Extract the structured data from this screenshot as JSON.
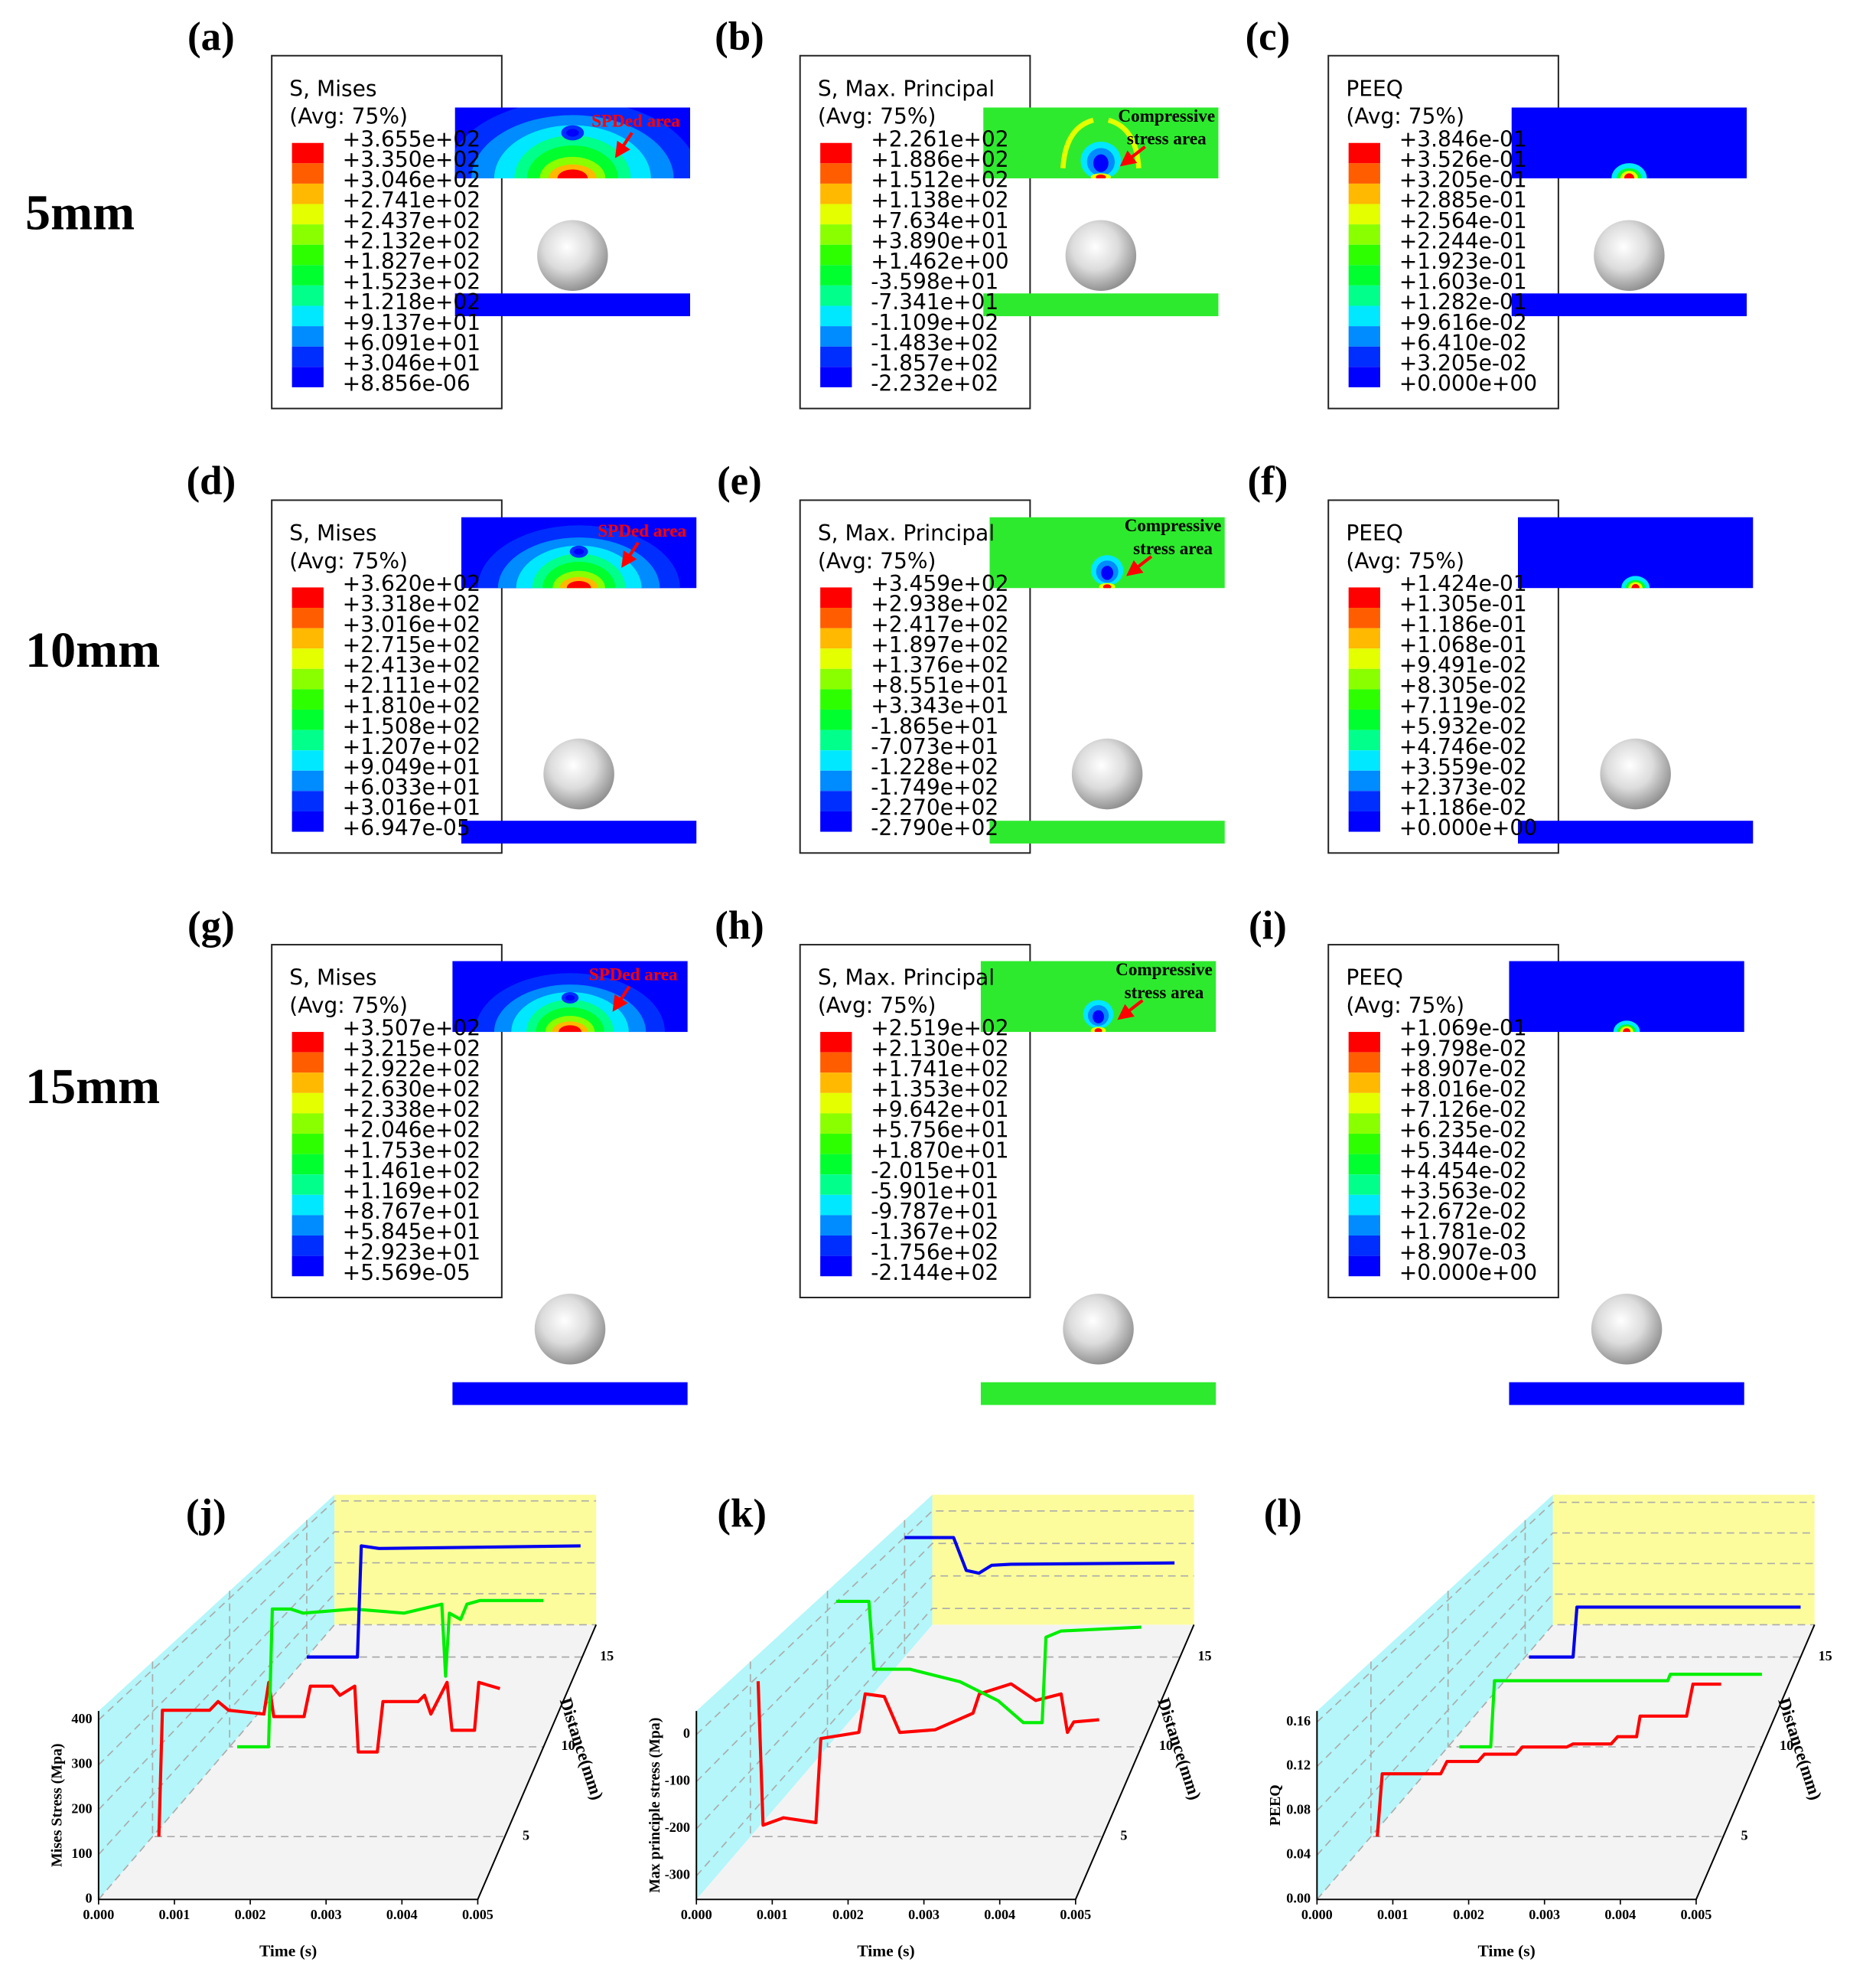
{
  "rows": [
    "5mm",
    "10mm",
    "15mm"
  ],
  "colormap": [
    "#ff0000",
    "#ff5d00",
    "#ffb900",
    "#e3ff00",
    "#8aff00",
    "#2eff00",
    "#00ff2e",
    "#00ff8b",
    "#00e8ff",
    "#008bff",
    "#002eff",
    "#0000ff"
  ],
  "panels": [
    {
      "label": "(a)",
      "title": [
        "S, Mises",
        "(Avg: 75%)"
      ],
      "color": "#0000ff",
      "annotation": [
        "SPDed area"
      ],
      "levels": [
        "+3.655e+02",
        "+3.350e+02",
        "+3.046e+02",
        "+2.741e+02",
        "+2.437e+02",
        "+2.132e+02",
        "+1.827e+02",
        "+1.523e+02",
        "+1.218e+02",
        "+9.137e+01",
        "+6.091e+01",
        "+3.046e+01",
        "+8.856e-06"
      ]
    },
    {
      "label": "(b)",
      "title": [
        "S, Max. Principal",
        "(Avg: 75%)"
      ],
      "color": "#2eea2e",
      "annotation": [
        "Compressive",
        "stress area"
      ],
      "levels": [
        "+2.261e+02",
        "+1.886e+02",
        "+1.512e+02",
        "+1.138e+02",
        "+7.634e+01",
        "+3.890e+01",
        "+1.462e+00",
        "-3.598e+01",
        "-7.341e+01",
        "-1.109e+02",
        "-1.483e+02",
        "-1.857e+02",
        "-2.232e+02"
      ]
    },
    {
      "label": "(c)",
      "title": [
        "PEEQ",
        "(Avg: 75%)"
      ],
      "color": "#0000ff",
      "levels": [
        "+3.846e-01",
        "+3.526e-01",
        "+3.205e-01",
        "+2.885e-01",
        "+2.564e-01",
        "+2.244e-01",
        "+1.923e-01",
        "+1.603e-01",
        "+1.282e-01",
        "+9.616e-02",
        "+6.410e-02",
        "+3.205e-02",
        "+0.000e+00"
      ]
    },
    {
      "label": "(d)",
      "title": [
        "S, Mises",
        "(Avg: 75%)"
      ],
      "color": "#0000ff",
      "annotation": [
        "SPDed area"
      ],
      "levels": [
        "+3.620e+02",
        "+3.318e+02",
        "+3.016e+02",
        "+2.715e+02",
        "+2.413e+02",
        "+2.111e+02",
        "+1.810e+02",
        "+1.508e+02",
        "+1.207e+02",
        "+9.049e+01",
        "+6.033e+01",
        "+3.016e+01",
        "+6.947e-05"
      ]
    },
    {
      "label": "(e)",
      "title": [
        "S, Max. Principal",
        "(Avg: 75%)"
      ],
      "color": "#2eea2e",
      "annotation": [
        "Compressive",
        "stress area"
      ],
      "levels": [
        "+3.459e+02",
        "+2.938e+02",
        "+2.417e+02",
        "+1.897e+02",
        "+1.376e+02",
        "+8.551e+01",
        "+3.343e+01",
        "-1.865e+01",
        "-7.073e+01",
        "-1.228e+02",
        "-1.749e+02",
        "-2.270e+02",
        "-2.790e+02"
      ]
    },
    {
      "label": "(f)",
      "title": [
        "PEEQ",
        "(Avg: 75%)"
      ],
      "color": "#0000ff",
      "levels": [
        "+1.424e-01",
        "+1.305e-01",
        "+1.186e-01",
        "+1.068e-01",
        "+9.491e-02",
        "+8.305e-02",
        "+7.119e-02",
        "+5.932e-02",
        "+4.746e-02",
        "+3.559e-02",
        "+2.373e-02",
        "+1.186e-02",
        "+0.000e+00"
      ]
    },
    {
      "label": "(g)",
      "title": [
        "S, Mises",
        "(Avg: 75%)"
      ],
      "color": "#0000ff",
      "annotation": [
        "SPDed area"
      ],
      "levels": [
        "+3.507e+02",
        "+3.215e+02",
        "+2.922e+02",
        "+2.630e+02",
        "+2.338e+02",
        "+2.046e+02",
        "+1.753e+02",
        "+1.461e+02",
        "+1.169e+02",
        "+8.767e+01",
        "+5.845e+01",
        "+2.923e+01",
        "+5.569e-05"
      ]
    },
    {
      "label": "(h)",
      "title": [
        "S, Max. Principal",
        "(Avg: 75%)"
      ],
      "color": "#2eea2e",
      "annotation": [
        "Compressive",
        "stress area"
      ],
      "levels": [
        "+2.519e+02",
        "+2.130e+02",
        "+1.741e+02",
        "+1.353e+02",
        "+9.642e+01",
        "+5.756e+01",
        "+1.870e+01",
        "-2.015e+01",
        "-5.901e+01",
        "-9.787e+01",
        "-1.367e+02",
        "-1.756e+02",
        "-2.144e+02"
      ]
    },
    {
      "label": "(i)",
      "title": [
        "PEEQ",
        "(Avg: 75%)"
      ],
      "color": "#0000ff",
      "levels": [
        "+1.069e-01",
        "+9.798e-02",
        "+8.907e-02",
        "+8.016e-02",
        "+7.126e-02",
        "+6.235e-02",
        "+5.344e-02",
        "+4.454e-02",
        "+3.563e-02",
        "+2.672e-02",
        "+1.781e-02",
        "+8.907e-03",
        "+0.000e+00"
      ]
    }
  ],
  "charts": [
    {
      "label": "(j)",
      "type": "line",
      "x_label": "Time (s)",
      "y_label": "Mises Stress (Mpa)",
      "z_label": "Distance(mm)",
      "xlim": [
        0,
        0.005
      ],
      "xticks": [
        {
          "value": 0,
          "label": "0.000"
        },
        0.001,
        0.002,
        0.003,
        0.004,
        0.005
      ],
      "ylim": [
        0,
        420
      ],
      "yticks": [
        0,
        100,
        200,
        300,
        400
      ],
      "zlim": [
        1.5,
        16.8
      ],
      "zticks": [
        5,
        10,
        15
      ],
      "series": [
        {
          "color": "#ff0000",
          "z": 5,
          "x": [
            9e-05,
            0.00014,
            0.00081,
            0.00093,
            0.00108,
            0.00158,
            0.00165,
            0.00172,
            0.00215,
            0.00224,
            0.00255,
            0.00266,
            0.00287,
            0.00292,
            0.00319,
            0.00327,
            0.00377,
            0.00386,
            0.00395,
            0.00418,
            0.00425,
            0.00457,
            0.00463,
            0.00493
          ],
          "values": [
            0,
            303,
            303,
            324,
            303,
            294,
            370,
            288,
            288,
            361,
            361,
            339,
            361,
            203,
            203,
            324,
            324,
            339,
            294,
            370,
            255,
            255,
            370,
            355
          ]
        },
        {
          "color": "#00ee00",
          "z": 10,
          "x": [
            0.00012,
            0.00062,
            0.00068,
            0.00097,
            0.00117,
            0.00197,
            0.00278,
            0.00338,
            0.00344,
            0.0035,
            0.00368,
            0.00378,
            0.00399,
            0.005
          ],
          "values": [
            0,
            0,
            371,
            371,
            360,
            371,
            360,
            384,
            190,
            360,
            343,
            384,
            394,
            394
          ]
        },
        {
          "color": "#0000ee",
          "z": 15,
          "x": [
            0,
            0.00092,
            0.00099,
            0.00131,
            0.00497
          ],
          "values": [
            0,
            0,
            341,
            333,
            341
          ]
        }
      ]
    },
    {
      "label": "(k)",
      "type": "line",
      "x_label": "Time (s)",
      "y_label": "Max principle stress (Mpa)",
      "z_label": "Distance(mm)",
      "xlim": [
        0,
        0.005
      ],
      "xticks": [
        {
          "value": 0,
          "label": "0.000"
        },
        0.001,
        0.002,
        0.003,
        0.004,
        0.005
      ],
      "ylim": [
        -350,
        50
      ],
      "yticks": [
        -300,
        -200,
        -100,
        0
      ],
      "zlim": [
        1.5,
        16.8
      ],
      "zticks": [
        5,
        10,
        15
      ],
      "series": [
        {
          "color": "#ff0000",
          "z": 5,
          "x": [
            0.00011,
            0.00018,
            0.00047,
            0.00093,
            0.001,
            0.00154,
            0.00163,
            0.0019,
            0.00212,
            0.00262,
            0.00316,
            0.00325,
            0.0037,
            0.00405,
            0.00441,
            0.0045,
            0.00459,
            0.00495
          ],
          "values": [
            5,
            -324,
            -307,
            -318,
            -126,
            -112,
            -24,
            -30,
            -112,
            -106,
            -68,
            -24,
            -1,
            -39,
            -24,
            -112,
            -88,
            -83
          ]
        },
        {
          "color": "#00ee00",
          "z": 10,
          "x": [
            0.00014,
            0.00066,
            0.00074,
            0.00131,
            0.00211,
            0.00272,
            0.00312,
            0.00342,
            0.00348,
            0.00372,
            0.005
          ],
          "values": [
            23,
            23,
            -151,
            -151,
            -183,
            -232,
            -288,
            -288,
            -69,
            -53,
            -43
          ]
        },
        {
          "color": "#0000ee",
          "z": 15,
          "x": [
            0,
            0.00089,
            0.00112,
            0.00135,
            0.00158,
            0.00193,
            0.0049
          ],
          "values": [
            -1,
            -1,
            -97,
            -105,
            -82,
            -79,
            -75
          ]
        }
      ]
    },
    {
      "label": "(l)",
      "type": "line",
      "x_label": "Time (s)",
      "y_label": "PEEQ",
      "z_label": "Distance(mm)",
      "xlim": [
        0,
        0.005
      ],
      "xticks": [
        {
          "value": 0,
          "label": "0.000"
        },
        0.001,
        0.002,
        0.003,
        0.004,
        0.005
      ],
      "ylim": [
        0,
        0.17
      ],
      "yticks": [
        {
          "value": 0,
          "label": "0.00"
        },
        0.04,
        0.08,
        0.12,
        0.16
      ],
      "zlim": [
        1.5,
        16.8
      ],
      "zticks": [
        5,
        10,
        15
      ],
      "series": [
        {
          "color": "#ff0000",
          "z": 5,
          "x": [
            9e-05,
            0.00016,
            0.00099,
            0.00108,
            0.00152,
            0.00161,
            0.00206,
            0.00215,
            0.00278,
            0.00287,
            0.00341,
            0.0035,
            0.00377,
            0.00382,
            0.00448,
            0.00457,
            0.00497
          ],
          "values": [
            0,
            0.061,
            0.061,
            0.073,
            0.073,
            0.08,
            0.08,
            0.087,
            0.087,
            0.09,
            0.09,
            0.097,
            0.097,
            0.117,
            0.117,
            0.148,
            0.148
          ]
        },
        {
          "color": "#00ee00",
          "z": 10,
          "x": [
            0.00018,
            0.00068,
            0.00074,
            0.0035,
            0.00354,
            0.005
          ],
          "values": [
            0,
            0,
            0.072,
            0.072,
            0.079,
            0.079
          ]
        },
        {
          "color": "#0000ee",
          "z": 15,
          "x": [
            7e-05,
            0.00087,
            0.00094,
            0.005
          ],
          "values": [
            0,
            0,
            0.062,
            0.062
          ]
        }
      ]
    }
  ]
}
